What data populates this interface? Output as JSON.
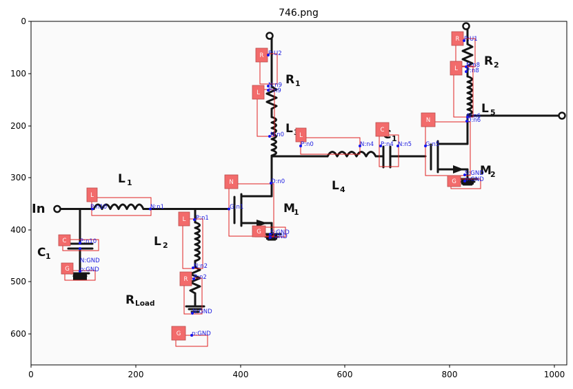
{
  "title": "746.png",
  "x_ticks": [
    "0",
    "200",
    "400",
    "600",
    "800",
    "1000"
  ],
  "y_ticks": [
    "0",
    "100",
    "200",
    "300",
    "400",
    "500",
    "600"
  ],
  "labels": {
    "in": "In",
    "c1": "C",
    "c1_sub": "1",
    "l1": "L",
    "l1_sub": "1",
    "l2": "L",
    "l2_sub": "2",
    "rload": "R",
    "rload_sub": "Load",
    "r1": "R",
    "r1_sub": "1",
    "l3": "L",
    "l3_sub": "3",
    "l4": "L",
    "l4_sub": "4",
    "cc1": "C",
    "cc1_sub": "1",
    "m1": "M",
    "m1_sub": "1",
    "m2": "M",
    "m2_sub": "2",
    "r2": "R",
    "r2_sub": "2",
    "l5": "L",
    "l5_sub": "5"
  },
  "annotations": [
    {
      "tag": "C",
      "pins": [
        "P:n10",
        "N:GND"
      ]
    },
    {
      "tag": "G",
      "pins": [
        "p:GND"
      ]
    },
    {
      "tag": "L",
      "pins": [
        "P:n10",
        "N:n1"
      ]
    },
    {
      "tag": "L",
      "pins": [
        "P:n1",
        "N:n2"
      ]
    },
    {
      "tag": "R",
      "pins": [
        "P:n2",
        "N:GND"
      ]
    },
    {
      "tag": "G",
      "pins": [
        "p:GND"
      ]
    },
    {
      "tag": "N",
      "pins": [
        "G:n1",
        "D:n0",
        "S:GND"
      ]
    },
    {
      "tag": "G",
      "pins": [
        "p:GND"
      ]
    },
    {
      "tag": "R",
      "pins": [
        "P:U2",
        "N:n9"
      ]
    },
    {
      "tag": "L",
      "pins": [
        "P:n9",
        "N:n0"
      ]
    },
    {
      "tag": "L",
      "pins": [
        "P:n0",
        "N:n4"
      ]
    },
    {
      "tag": "C",
      "pins": [
        "P:n4",
        "N:n5"
      ]
    },
    {
      "tag": "N",
      "pins": [
        "G:n5",
        "D:n6",
        "S:GND"
      ]
    },
    {
      "tag": "G",
      "pins": [
        "p:GND"
      ]
    },
    {
      "tag": "R",
      "pins": [
        "P:U1",
        "N:n8"
      ]
    },
    {
      "tag": "L",
      "pins": [
        "P:n8",
        "N:n6"
      ]
    }
  ],
  "colors": {
    "box": "#e02020",
    "tag": "#f26b6b",
    "pin": "#1515ee",
    "wire": "#151515"
  }
}
